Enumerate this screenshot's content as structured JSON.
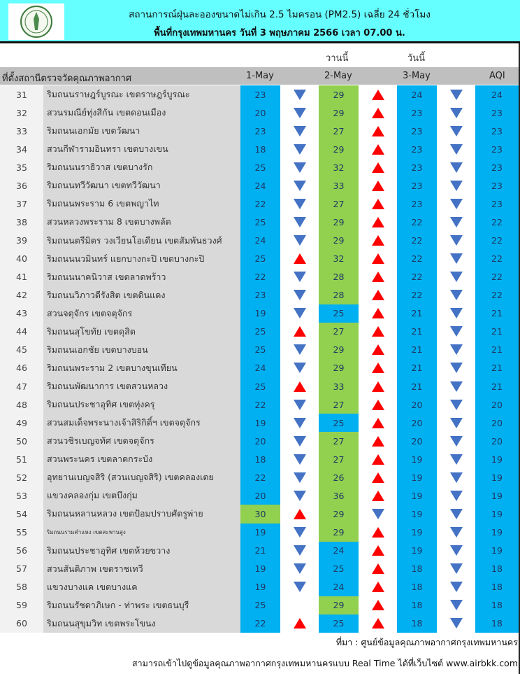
{
  "header": {
    "title": "สถานการณ์ฝุ่นละอองขนาดไม่เกิน 2.5 ไมครอน (PM2.5) เฉลี่ย 24 ชั่วโมง",
    "subtitle": "พื้นที่กรุงเทพมหานคร วันที่ 3 พฤษภาคม 2566 เวลา 07.00 น.",
    "logo_text": "กรุงเทพมหานคร"
  },
  "labels": {
    "yesterday": "วานนี้",
    "today": "วันนี้"
  },
  "columns": {
    "station": "ที่ตั้งสถานีตรวจวัดคุณภาพอากาศ",
    "d1": "1-May",
    "d2": "2-May",
    "d3": "3-May",
    "aqi": "AQI"
  },
  "colors": {
    "banner": "#66ffff",
    "good": "#00b0f0",
    "moderate": "#92d050",
    "up": "#ff0000",
    "down": "#4472c4"
  },
  "rows": [
    [
      "31",
      "ริมถนนราษฎร์บูรณะ เขตราษฎร์บูรณะ",
      "23",
      "down",
      "29",
      "up",
      "24",
      "down",
      "24"
    ],
    [
      "32",
      "สวนรมณีย์ทุ่งสีกัน เขตดอนเมือง",
      "20",
      "down",
      "29",
      "up",
      "23",
      "down",
      "23"
    ],
    [
      "33",
      "ริมถนนเอกมัย เขตวัฒนา",
      "23",
      "down",
      "27",
      "up",
      "23",
      "down",
      "23"
    ],
    [
      "34",
      "สวนกีฬารามอินทรา เขตบางเขน",
      "18",
      "down",
      "29",
      "up",
      "23",
      "down",
      "23"
    ],
    [
      "35",
      "ริมถนนนราธิวาส เขตบางรัก",
      "25",
      "down",
      "32",
      "up",
      "23",
      "down",
      "23"
    ],
    [
      "36",
      "ริมถนนทวีวัฒนา เขตทวีวัฒนา",
      "24",
      "down",
      "33",
      "up",
      "23",
      "down",
      "23"
    ],
    [
      "37",
      "ริมถนนพระราม 6 เขตพญาไท",
      "22",
      "down",
      "27",
      "up",
      "23",
      "down",
      "23"
    ],
    [
      "38",
      "สวนหลวงพระราม 8 เขตบางพลัด",
      "25",
      "down",
      "29",
      "up",
      "22",
      "down",
      "22"
    ],
    [
      "39",
      "ริมถนนตรีมิตร วงเวียนโอเดียน เขตสัมพันธวงศ์",
      "24",
      "down",
      "29",
      "up",
      "22",
      "down",
      "22"
    ],
    [
      "40",
      "ริมถนนนวมินทร์ แยกบางกะปิ เขตบางกะปิ",
      "25",
      "up",
      "32",
      "up",
      "22",
      "down",
      "22"
    ],
    [
      "41",
      "ริมถนนนาคนิวาส เขตลาดพร้าว",
      "22",
      "down",
      "28",
      "up",
      "22",
      "down",
      "22"
    ],
    [
      "42",
      "ริมถนนวิภาวดีรังสิต เขตดินแดง",
      "23",
      "down",
      "28",
      "up",
      "22",
      "down",
      "22"
    ],
    [
      "43",
      "สวนจตุจักร เขตจตุจักร",
      "19",
      "down",
      "25",
      "up",
      "21",
      "down",
      "21"
    ],
    [
      "44",
      "ริมถนนสุโขทัย เขตดุสิต",
      "25",
      "up",
      "27",
      "up",
      "21",
      "down",
      "21"
    ],
    [
      "45",
      "ริมถนนเอกชัย เขตบางบอน",
      "25",
      "down",
      "29",
      "up",
      "21",
      "down",
      "21"
    ],
    [
      "46",
      "ริมถนนพระราม 2 เขตบางขุนเทียน",
      "24",
      "down",
      "29",
      "up",
      "21",
      "down",
      "21"
    ],
    [
      "47",
      "ริมถนนพัฒนาการ เขตสวนหลวง",
      "25",
      "up",
      "33",
      "up",
      "21",
      "down",
      "21"
    ],
    [
      "48",
      "ริมถนนประชาอุทิศ เขตทุ่งครุ",
      "22",
      "down",
      "27",
      "up",
      "20",
      "down",
      "20"
    ],
    [
      "49",
      "สวนสมเด็จพระนางเจ้าสิริกิติ์ฯ เขตจตุจักร",
      "19",
      "down",
      "25",
      "up",
      "20",
      "down",
      "20"
    ],
    [
      "50",
      "สวนวชิรเบญจทัศ เขตจตุจักร",
      "20",
      "down",
      "27",
      "up",
      "20",
      "down",
      "20"
    ],
    [
      "51",
      "สวนพระนคร เขตลาดกระบัง",
      "18",
      "down",
      "27",
      "up",
      "19",
      "down",
      "19"
    ],
    [
      "52",
      "อุทยานเบญจสิริ (สวนเบญจสิริ) เขตคลองเตย",
      "22",
      "down",
      "26",
      "up",
      "19",
      "down",
      "19"
    ],
    [
      "53",
      "แขวงคลองกุ่ม เขตบึงกุ่ม",
      "20",
      "down",
      "36",
      "up",
      "19",
      "down",
      "19"
    ],
    [
      "54",
      "ริมถนนหลานหลวง เขตป้อมปราบศัตรูพ่าย",
      "30",
      "up",
      "29",
      "down",
      "19",
      "down",
      "19"
    ],
    [
      "55",
      "ริมถนนรามคำแหง เขตสะพานสูง",
      "19",
      "down",
      "29",
      "up",
      "19",
      "down",
      "19"
    ],
    [
      "56",
      "ริมถนนประชาอุทิศ เขตห้วยขวาง",
      "21",
      "down",
      "24",
      "up",
      "19",
      "down",
      "19"
    ],
    [
      "57",
      "สวนสันติภาพ เขตราชเทวี",
      "19",
      "down",
      "25",
      "up",
      "18",
      "down",
      "18"
    ],
    [
      "58",
      "แขวงบางแค เขตบางแค",
      "19",
      "down",
      "24",
      "up",
      "18",
      "down",
      "18"
    ],
    [
      "59",
      "ริมถนนรัชดาภิเษก - ท่าพระ เขตธนบุรี",
      "25",
      "",
      "29",
      "up",
      "18",
      "down",
      "18"
    ],
    [
      "60",
      "ริมถนนสุขุมวิท เขตพระโขนง",
      "22",
      "up",
      "25",
      "up",
      "18",
      "down",
      "18"
    ]
  ],
  "footer": {
    "source": "ที่มา : ศูนย์ข้อมูลคุณภาพอากาศกรุงเทพมหานคร",
    "realtime": "สามารถเข้าไปดูข้อมูลคุณภาพอากาศกรุงเทพมหานครแบบ Real Time ได้ที่เว็บไซต์ www.airbkk.com"
  }
}
